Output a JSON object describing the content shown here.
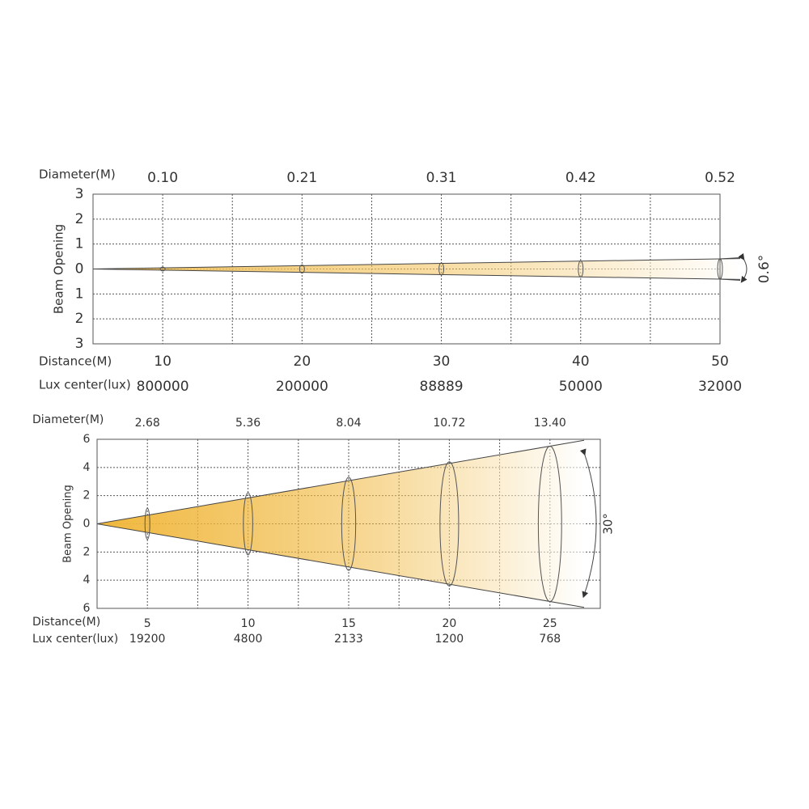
{
  "chart_data": [
    {
      "type": "beam",
      "y_label": "Beam Opening",
      "diameter_label": "Diameter(M)",
      "distance_label": "Distance(M)",
      "lux_label": "Lux center(lux)",
      "angle_label": "0.6°",
      "x": [
        10,
        20,
        30,
        40,
        50
      ],
      "diameters": [
        0.1,
        0.21,
        0.31,
        0.42,
        0.52
      ],
      "diameter_labels": [
        "0.10",
        "0.21",
        "0.31",
        "0.42",
        "0.52"
      ],
      "lux": [
        800000,
        200000,
        88889,
        50000,
        32000
      ],
      "xlim": [
        5,
        50
      ],
      "ylim": [
        -3,
        3
      ],
      "yticks": [
        {
          "value": -3,
          "label": "3"
        },
        {
          "value": -2,
          "label": "2"
        },
        {
          "value": -1,
          "label": "1"
        },
        0,
        1,
        2,
        3
      ],
      "grid": true,
      "color": "#f2c25c"
    },
    {
      "type": "beam",
      "y_label": "Beam Opening",
      "diameter_label": "Diameter(M)",
      "distance_label": "Distance(M)",
      "lux_label": "Lux center(lux)",
      "angle_label": "30°",
      "x": [
        5,
        10,
        15,
        20,
        25
      ],
      "diameters": [
        2.68,
        5.36,
        8.04,
        10.72,
        13.4
      ],
      "diameter_labels": [
        "2.68",
        "5.36",
        "8.04",
        "10.72",
        "13.40"
      ],
      "lux": [
        19200,
        4800,
        2133,
        1200,
        768
      ],
      "xlim": [
        2.5,
        27.5
      ],
      "ylim": [
        -6,
        6
      ],
      "yticks": [
        {
          "value": -6,
          "label": "6"
        },
        {
          "value": -4,
          "label": "4"
        },
        {
          "value": -2,
          "label": "2"
        },
        0,
        2,
        4,
        6
      ],
      "grid": true,
      "color": "#f0b73c"
    }
  ]
}
